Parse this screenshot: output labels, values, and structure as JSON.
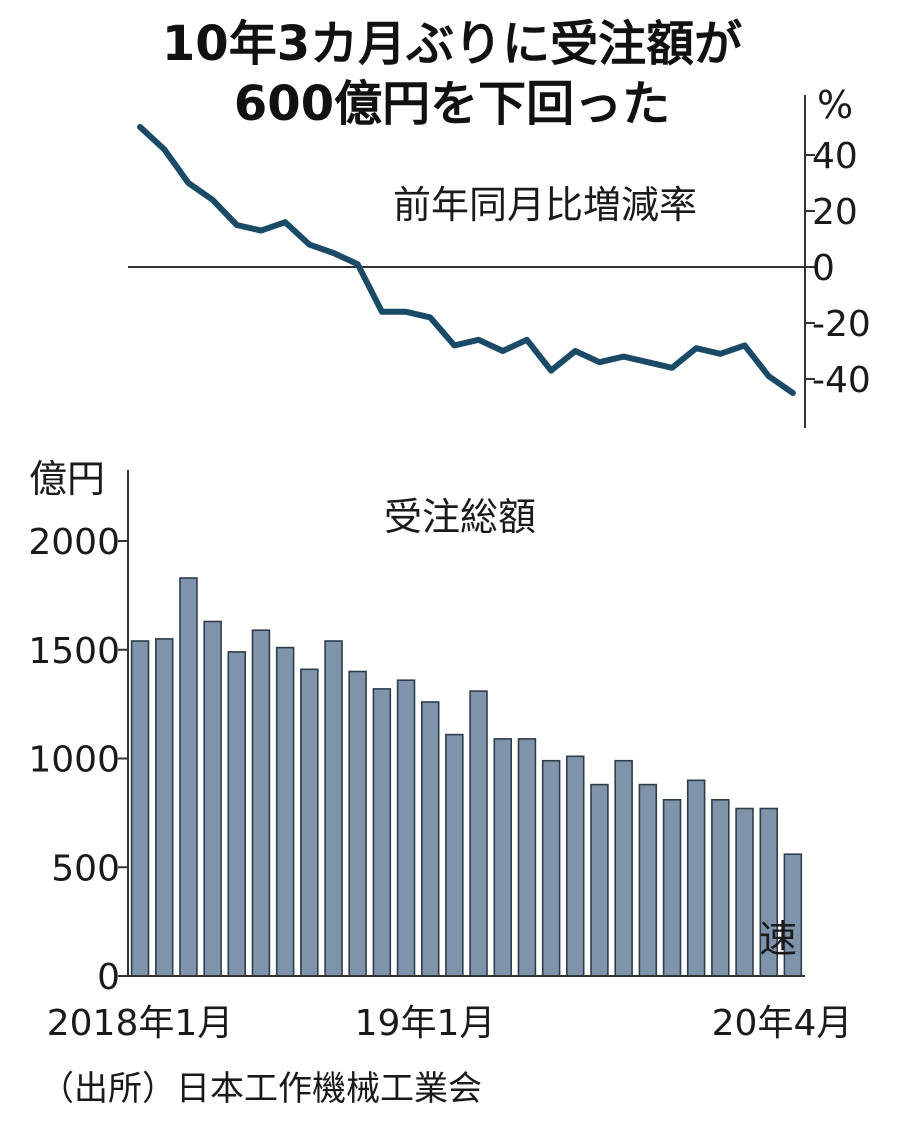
{
  "headline": {
    "line1": "10年3カ月ぶりに受注額が",
    "line2": "600億円を下回った"
  },
  "source": "（出所）日本工作機械工業会",
  "colors": {
    "line": "#1b4a66",
    "bar_fill": "#7f94ab",
    "bar_stroke": "#2e3d4d",
    "axis": "#333333"
  },
  "chart_data": [
    {
      "type": "line",
      "title": "前年同月比増減率",
      "unit_label": "%",
      "ylim": [
        -50,
        50
      ],
      "yticks": [
        "40",
        "20",
        "0",
        "-20",
        "-40"
      ],
      "x": [
        "2018-01",
        "2018-02",
        "2018-03",
        "2018-04",
        "2018-05",
        "2018-06",
        "2018-07",
        "2018-08",
        "2018-09",
        "2018-10",
        "2018-11",
        "2018-12",
        "2019-01",
        "2019-02",
        "2019-03",
        "2019-04",
        "2019-05",
        "2019-06",
        "2019-07",
        "2019-08",
        "2019-09",
        "2019-10",
        "2019-11",
        "2019-12",
        "2020-01",
        "2020-02",
        "2020-03",
        "2020-04"
      ],
      "values": [
        50,
        42,
        30,
        24,
        15,
        13,
        16,
        8,
        5,
        1,
        -16,
        -16,
        -18,
        -28,
        -26,
        -30,
        -26,
        -37,
        -30,
        -34,
        -32,
        -34,
        -36,
        -29,
        -31,
        -28,
        -39,
        -45
      ],
      "zero_line": true,
      "axis_side": "right"
    },
    {
      "type": "bar",
      "title": "受注総額",
      "unit_label": "億円",
      "ylim": [
        0,
        2100
      ],
      "yticks": [
        "2000",
        "1500",
        "1000",
        "500",
        "0"
      ],
      "x_labels": [
        "2018年1月",
        "19年1月",
        "20年4月"
      ],
      "categories": [
        "2018-01",
        "2018-02",
        "2018-03",
        "2018-04",
        "2018-05",
        "2018-06",
        "2018-07",
        "2018-08",
        "2018-09",
        "2018-10",
        "2018-11",
        "2018-12",
        "2019-01",
        "2019-02",
        "2019-03",
        "2019-04",
        "2019-05",
        "2019-06",
        "2019-07",
        "2019-08",
        "2019-09",
        "2019-10",
        "2019-11",
        "2019-12",
        "2020-01",
        "2020-02",
        "2020-03",
        "2020-04"
      ],
      "values": [
        1540,
        1550,
        1830,
        1630,
        1490,
        1590,
        1510,
        1410,
        1540,
        1400,
        1320,
        1360,
        1260,
        1110,
        1310,
        1090,
        1090,
        990,
        1010,
        880,
        990,
        880,
        810,
        900,
        810,
        770,
        770,
        560
      ],
      "annotation": "速"
    }
  ]
}
